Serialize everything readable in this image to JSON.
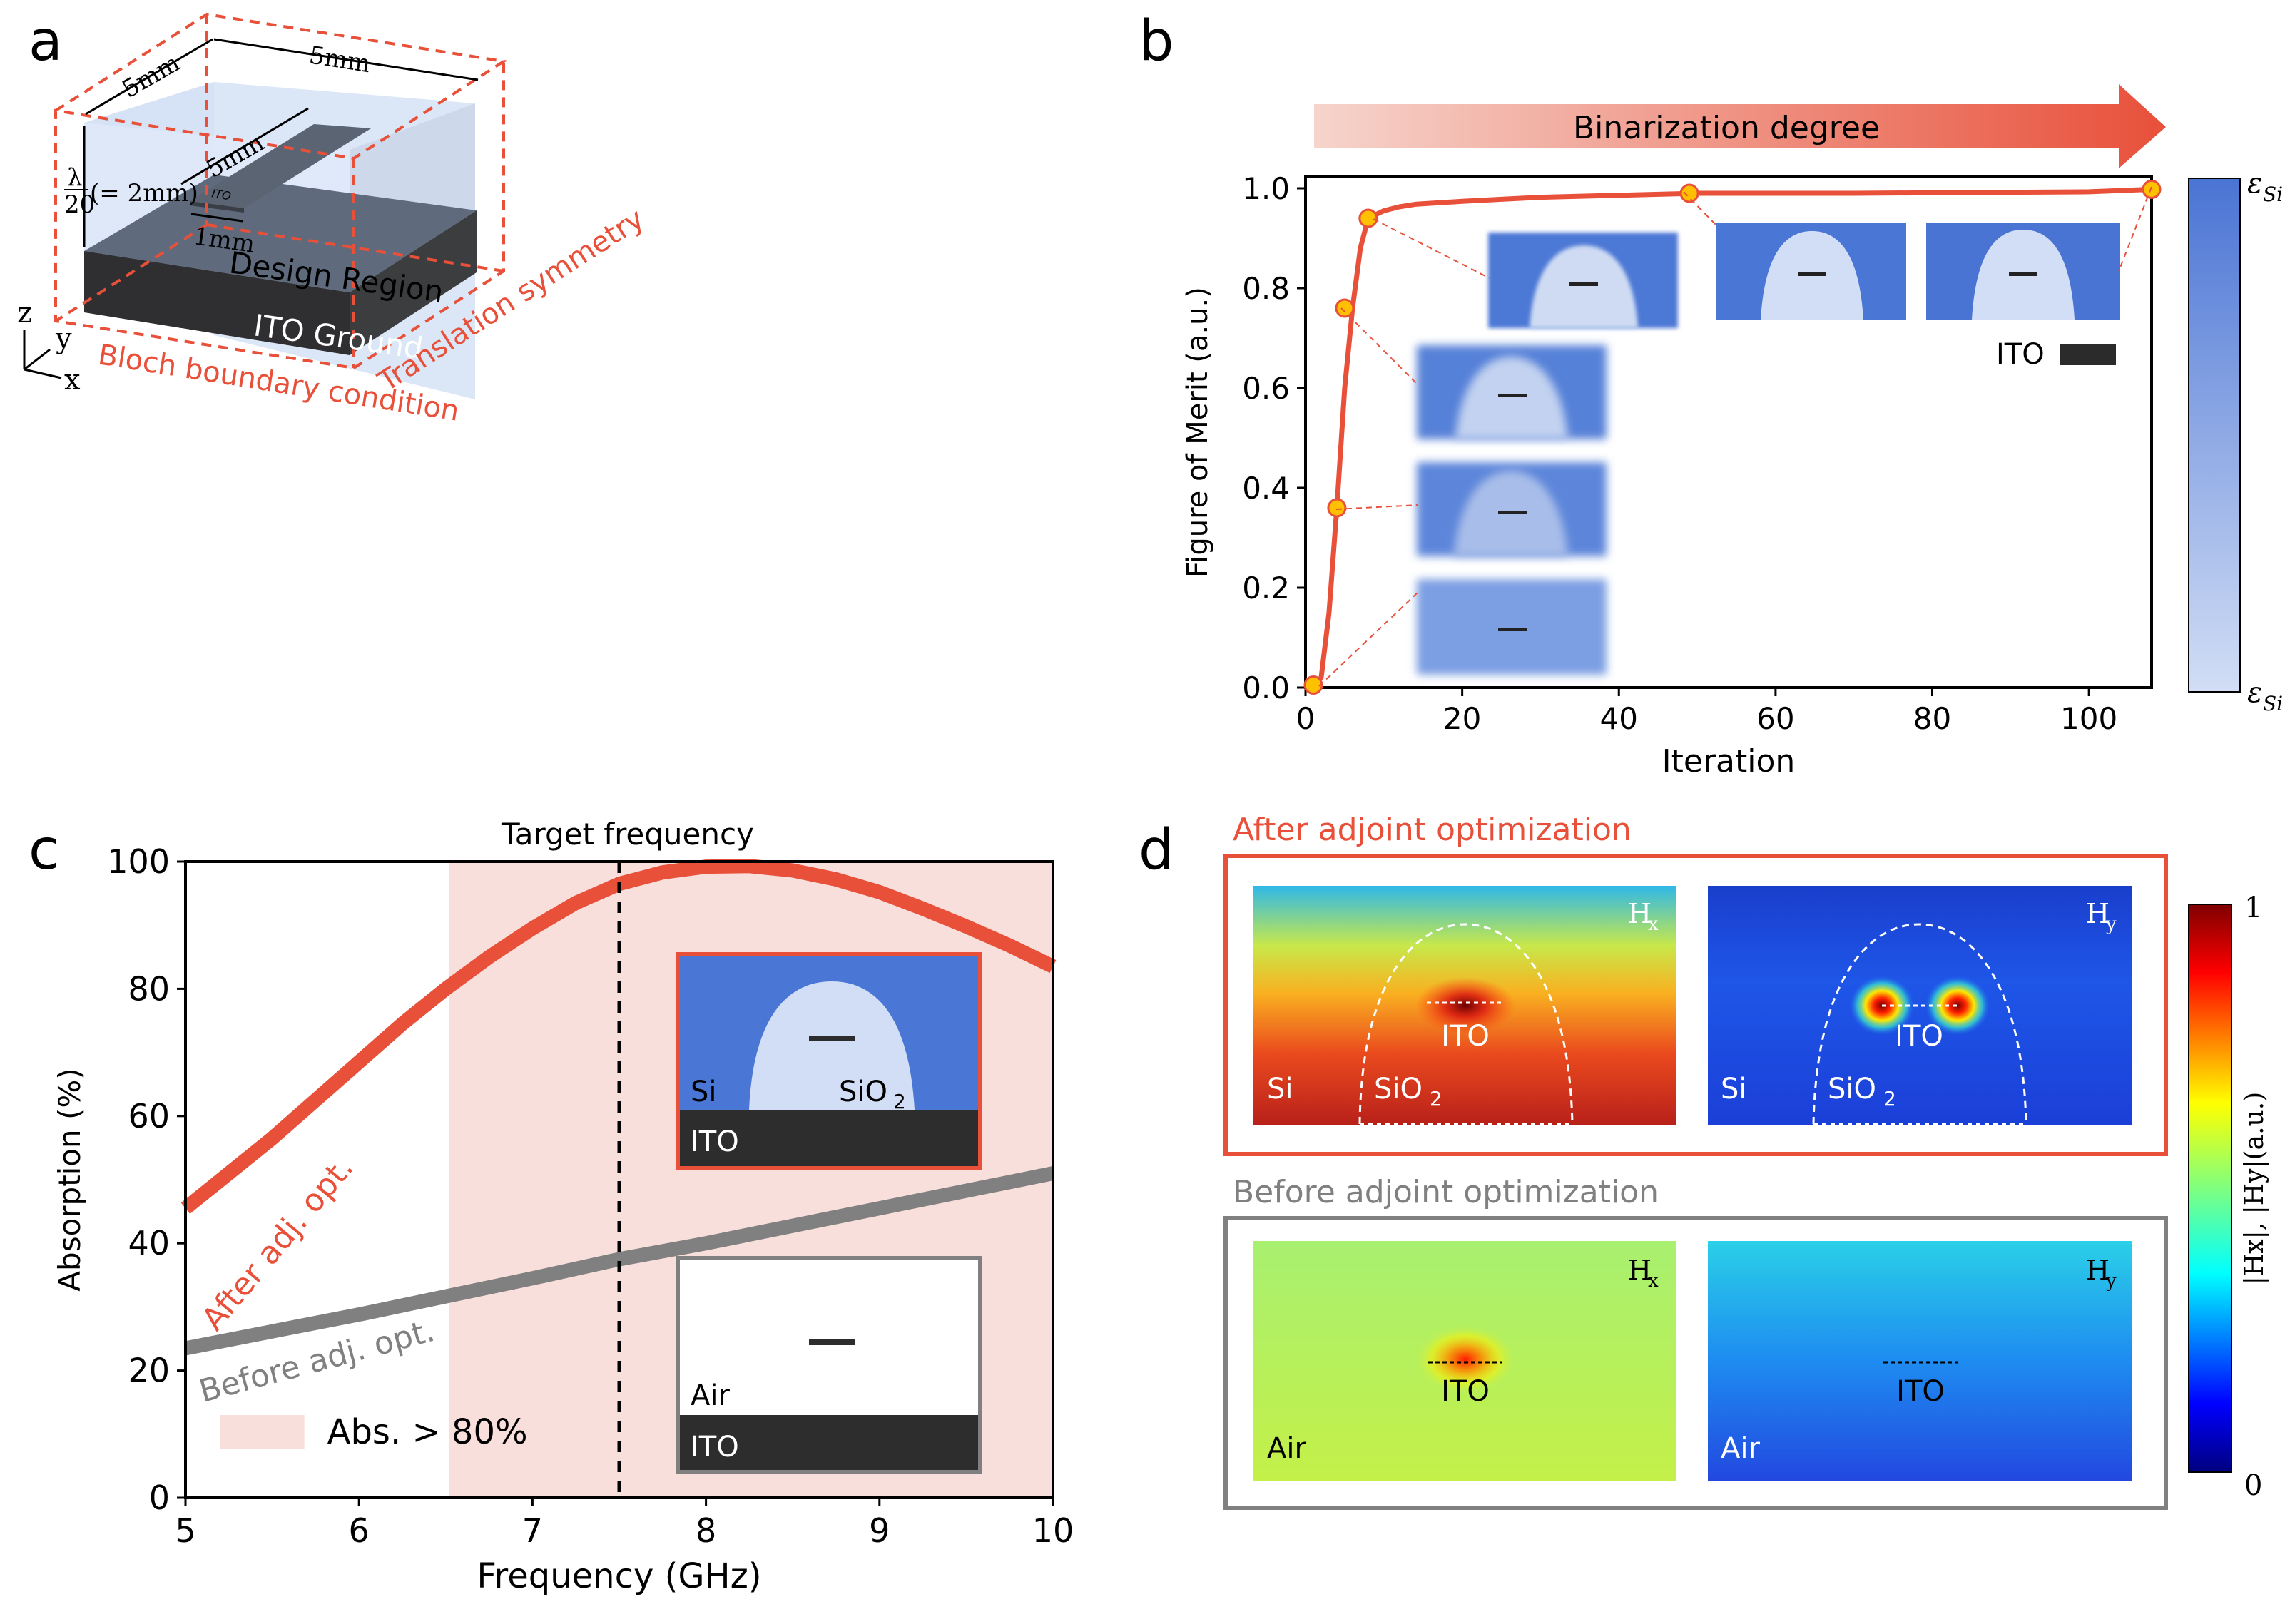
{
  "panel_labels": {
    "a": "a",
    "b": "b",
    "c": "c",
    "d": "d"
  },
  "panel_a": {
    "dim_top": "5mm",
    "dim_left": "5mm",
    "dim_strip": "5mm",
    "dim_width": "1mm",
    "lambda": "λ",
    "lambda_den": "20",
    "lambda_eq": "(= 2mm)",
    "ito_tag": "ITO",
    "design_region": "Design Region",
    "ito_ground": "ITO Ground",
    "bloch": "Bloch boundary condition",
    "translation": "Translation symmetry",
    "axis_z": "z",
    "axis_y": "y",
    "axis_x": "x"
  },
  "panel_b": {
    "arrow_label": "Binarization degree",
    "ito_legend": "ITO",
    "cbar_top": "ε",
    "cbar_top_sub": "Si",
    "cbar_bottom": "ε",
    "cbar_bottom_sub": "Si"
  },
  "panel_c": {
    "target": "Target frequency",
    "after_label": "After adj. opt.",
    "before_label": "Before adj. opt.",
    "legend": "Abs. > 80%",
    "inset1": {
      "si": "Si",
      "sio2": "SiO",
      "sio2_sub": "2",
      "ito": "ITO"
    },
    "inset2": {
      "air": "Air",
      "ito": "ITO"
    }
  },
  "panel_d": {
    "after_title": "After adjoint optimization",
    "before_title": "Before adjoint optimization",
    "hx": "H",
    "hx_sub": "x",
    "hy": "H",
    "hy_sub": "y",
    "ito": "ITO",
    "si": "Si",
    "sio2": "SiO",
    "sio2_sub": "2",
    "air": "Air",
    "cbar_max": "1",
    "cbar_min": "0",
    "cbar_label": "|Hx|, |Hy|(a.u.)"
  },
  "chart_data": [
    {
      "type": "line",
      "title": "",
      "xlabel": "Iteration",
      "ylabel": "Figure of Merit (a.u.)",
      "xlim": [
        0,
        108
      ],
      "ylim": [
        0,
        1.0
      ],
      "xticks": [
        "0",
        "20",
        "40",
        "60",
        "80",
        "100"
      ],
      "xtick_values": [
        0,
        20,
        40,
        60,
        80,
        100
      ],
      "yticks": [
        "0.0",
        "0.2",
        "0.4",
        "0.6",
        "0.8",
        "1.0"
      ],
      "ytick_values": [
        0,
        0.2,
        0.4,
        0.6,
        0.8,
        1.0
      ],
      "series": [
        {
          "name": "FoM",
          "x": [
            1,
            2,
            3,
            4,
            5,
            6,
            7,
            8,
            10,
            12,
            14,
            20,
            25,
            30,
            40,
            50,
            60,
            70,
            80,
            90,
            100,
            105,
            108
          ],
          "y": [
            0.005,
            0.02,
            0.15,
            0.36,
            0.6,
            0.76,
            0.88,
            0.94,
            0.955,
            0.963,
            0.968,
            0.974,
            0.978,
            0.982,
            0.986,
            0.99,
            0.99,
            0.99,
            0.991,
            0.992,
            0.993,
            0.996,
            0.998
          ]
        }
      ],
      "markers": {
        "x": [
          1,
          4,
          5,
          8,
          49,
          108
        ],
        "y": [
          0.005,
          0.36,
          0.76,
          0.94,
          0.99,
          0.998
        ]
      }
    },
    {
      "type": "line",
      "title": "",
      "xlabel": "Frequency (GHz)",
      "ylabel": "Absorption (%)",
      "xlim": [
        5,
        10
      ],
      "ylim": [
        0,
        100
      ],
      "xticks": [
        "5",
        "6",
        "7",
        "8",
        "9",
        "10"
      ],
      "xtick_values": [
        5,
        6,
        7,
        8,
        9,
        10
      ],
      "yticks": [
        "0",
        "20",
        "40",
        "60",
        "80",
        "100"
      ],
      "ytick_values": [
        0,
        20,
        40,
        60,
        80,
        100
      ],
      "shaded_region": {
        "x": [
          6.52,
          10
        ],
        "label": "Abs. > 80%"
      },
      "vline": {
        "x": 7.5,
        "label": "Target frequency"
      },
      "series": [
        {
          "name": "After adj. opt.",
          "color": "#e8503a",
          "x": [
            5.0,
            5.25,
            5.5,
            5.75,
            6.0,
            6.25,
            6.5,
            6.75,
            7.0,
            7.25,
            7.5,
            7.75,
            8.0,
            8.25,
            8.5,
            8.75,
            9.0,
            9.25,
            9.5,
            9.75,
            10.0
          ],
          "y": [
            45.5,
            51,
            56.5,
            62.5,
            68.5,
            74.5,
            80,
            85,
            89.5,
            93.5,
            96.5,
            98.3,
            99.2,
            99.3,
            98.6,
            97.2,
            95.2,
            92.6,
            89.8,
            86.8,
            83.5
          ]
        },
        {
          "name": "Before adj. opt.",
          "color": "#808080",
          "x": [
            5.0,
            6.0,
            7.0,
            7.5,
            8.0,
            9.0,
            10.0
          ],
          "y": [
            23.5,
            28.8,
            34.5,
            37.5,
            40.0,
            45.5,
            51.0
          ]
        }
      ]
    }
  ]
}
